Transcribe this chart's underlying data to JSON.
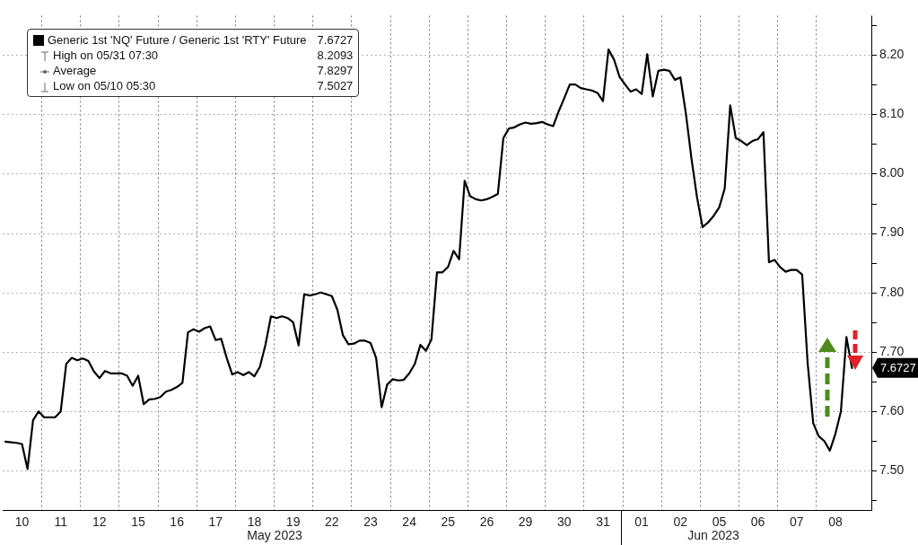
{
  "chart_data": {
    "type": "line",
    "legend": "top left",
    "grid": true,
    "marker": "none",
    "line_style": "solid",
    "categories": [
      null,
      null,
      null,
      "10",
      null,
      null,
      null,
      null,
      null,
      null,
      "11",
      null,
      null,
      null,
      null,
      null,
      null,
      "12",
      null,
      null,
      null,
      null,
      null,
      null,
      "15",
      null,
      null,
      null,
      null,
      null,
      null,
      "16",
      null,
      null,
      null,
      null,
      null,
      null,
      "17",
      null,
      null,
      null,
      null,
      null,
      null,
      "18",
      null,
      null,
      null,
      null,
      null,
      null,
      "19",
      null,
      null,
      null,
      null,
      null,
      null,
      "22",
      null,
      null,
      null,
      null,
      null,
      null,
      "23",
      null,
      null,
      null,
      null,
      null,
      null,
      "24",
      null,
      null,
      null,
      null,
      null,
      null,
      "25",
      null,
      null,
      null,
      null,
      null,
      null,
      "26",
      null,
      null,
      null,
      null,
      null,
      null,
      "29",
      null,
      null,
      null,
      null,
      null,
      null,
      "30",
      null,
      null,
      null,
      null,
      null,
      null,
      "31",
      null,
      null,
      null,
      null,
      null,
      null,
      "01",
      null,
      null,
      null,
      null,
      null,
      null,
      "02",
      null,
      null,
      null,
      null,
      null,
      null,
      "05",
      null,
      null,
      null,
      null,
      null,
      null,
      "06",
      null,
      null,
      null,
      null,
      null,
      null,
      "07",
      null,
      null,
      null,
      null,
      null,
      null,
      "08",
      null,
      null,
      null,
      null,
      null,
      null
    ],
    "ylim": [
      7.434,
      8.266
    ],
    "yticks": [
      {
        "value": 7.45,
        "label": null
      },
      {
        "value": 7.5,
        "label": "7.50"
      },
      {
        "value": 7.55,
        "label": null
      },
      {
        "value": 7.6,
        "label": "7.60"
      },
      {
        "value": 7.65,
        "label": null
      },
      {
        "value": 7.7,
        "label": "7.70"
      },
      {
        "value": 7.75,
        "label": null
      },
      {
        "value": 7.8,
        "label": "7.80"
      },
      {
        "value": 7.85,
        "label": null
      },
      {
        "value": 7.9,
        "label": "7.90"
      },
      {
        "value": 7.95,
        "label": null
      },
      {
        "value": 8.0,
        "label": "8.00"
      },
      {
        "value": 8.05,
        "label": null
      },
      {
        "value": 8.1,
        "label": "8.10"
      },
      {
        "value": 8.15,
        "label": null
      },
      {
        "value": 8.2,
        "label": "8.20"
      },
      {
        "value": 8.25,
        "label": null
      }
    ],
    "annotations": [
      "7.6727",
      "High on 05/31 07:30",
      "8.2093",
      "Average",
      "7.8297",
      "Low on 05/10 05:30",
      "7.5027",
      "7.6727",
      "May 2023",
      "Jun 2023"
    ],
    "series": [
      {
        "name": "Generic 1st 'NQ' Future / Generic 1st 'RTY' Future",
        "color": "#000000",
        "values": [
          7.549,
          7.548,
          7.547,
          7.545,
          7.503,
          7.585,
          7.6,
          7.59,
          7.59,
          7.59,
          7.6,
          7.68,
          7.69,
          7.686,
          7.689,
          7.685,
          7.667,
          7.656,
          7.668,
          7.664,
          7.664,
          7.664,
          7.66,
          7.643,
          7.66,
          7.612,
          7.62,
          7.621,
          7.624,
          7.633,
          7.636,
          7.641,
          7.648,
          7.733,
          7.738,
          7.734,
          7.74,
          7.743,
          7.72,
          7.722,
          7.69,
          7.662,
          7.666,
          7.661,
          7.666,
          7.659,
          7.675,
          7.712,
          7.76,
          7.757,
          7.76,
          7.757,
          7.75,
          7.711,
          7.797,
          7.795,
          7.797,
          7.8,
          7.797,
          7.794,
          7.771,
          7.728,
          7.713,
          7.714,
          7.719,
          7.719,
          7.715,
          7.69,
          7.607,
          7.645,
          7.654,
          7.652,
          7.653,
          7.664,
          7.68,
          7.712,
          7.702,
          7.721,
          7.834,
          7.834,
          7.843,
          7.87,
          7.856,
          7.988,
          7.962,
          7.957,
          7.955,
          7.957,
          7.961,
          7.966,
          8.06,
          8.076,
          8.078,
          8.083,
          8.086,
          8.084,
          8.085,
          8.087,
          8.083,
          8.08,
          8.105,
          8.127,
          8.15,
          8.15,
          8.144,
          8.142,
          8.14,
          8.136,
          8.122,
          8.209,
          8.192,
          8.163,
          8.15,
          8.138,
          8.142,
          8.134,
          8.201,
          8.13,
          8.173,
          8.175,
          8.173,
          8.158,
          8.162,
          8.1,
          8.025,
          7.96,
          7.91,
          7.918,
          7.929,
          7.943,
          7.975,
          8.115,
          8.06,
          8.055,
          8.048,
          8.055,
          8.058,
          8.07,
          7.851,
          7.855,
          7.843,
          7.835,
          7.838,
          7.838,
          7.83,
          7.68,
          7.58,
          7.558,
          7.55,
          7.534,
          7.562,
          7.6,
          7.725,
          7.673,
          null,
          null,
          null
        ]
      }
    ]
  }
}
